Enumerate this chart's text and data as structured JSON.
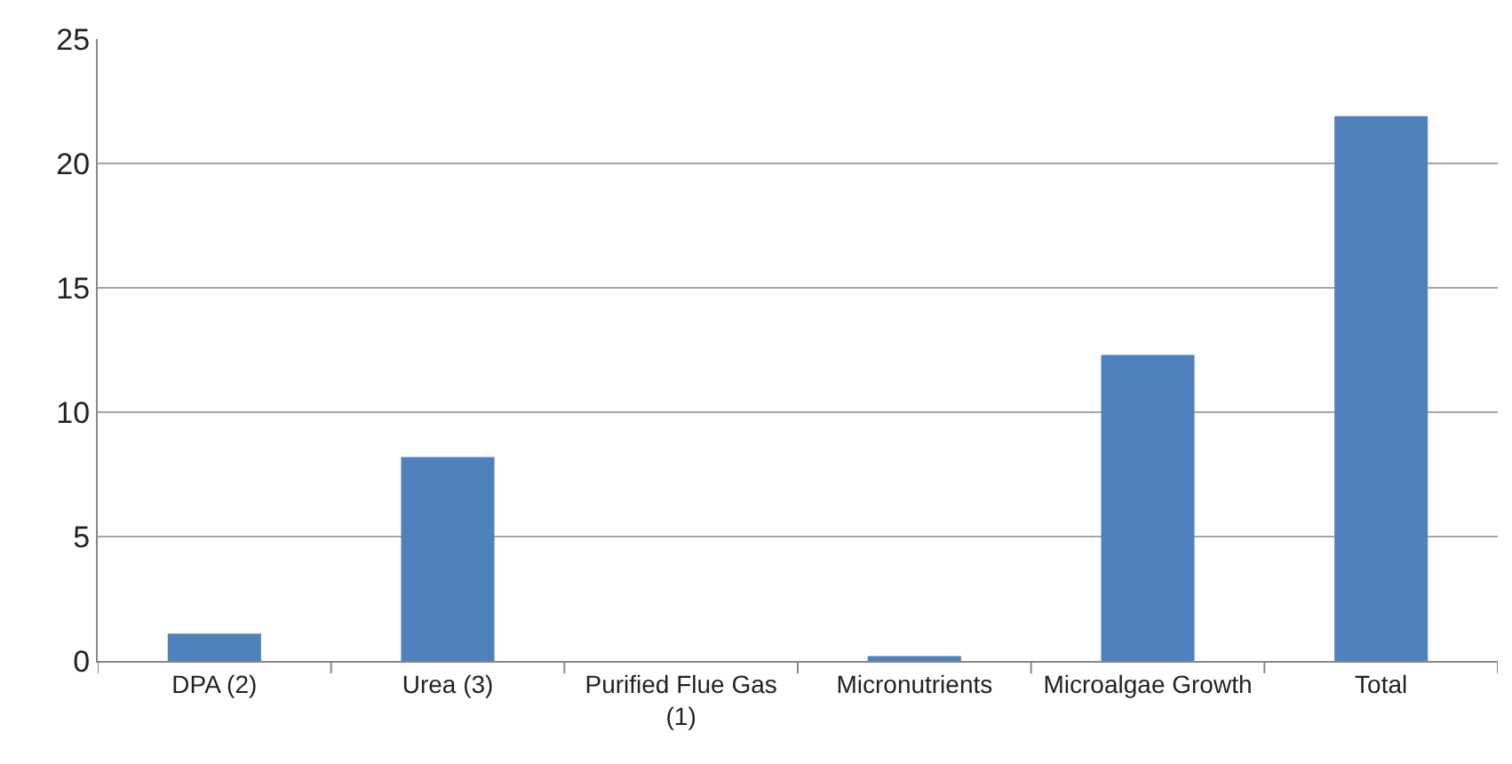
{
  "chart_data": {
    "type": "bar",
    "categories": [
      "DPA (2)",
      "Urea (3)",
      "Purified Flue Gas (1)",
      "Micronutrients",
      "Microalgae Growth",
      "Total"
    ],
    "values": [
      1.1,
      8.2,
      0,
      0.2,
      12.3,
      21.9
    ],
    "color": "#4f81bd",
    "ylim": [
      0,
      25
    ],
    "yticks": [
      0,
      5,
      10,
      15,
      20,
      25
    ],
    "grid": "y"
  }
}
